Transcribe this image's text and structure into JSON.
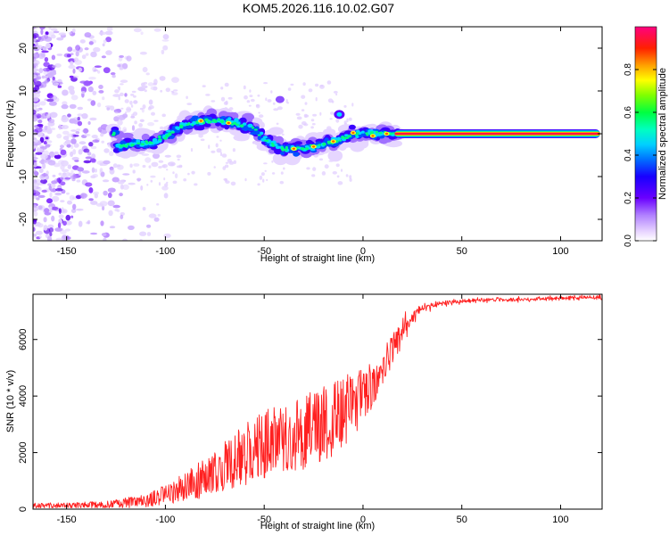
{
  "title": "KOM5.2026.116.10.02.G07",
  "chart_data": [
    {
      "type": "heatmap",
      "name": "spectrogram",
      "xlabel": "Height of straight line (km)",
      "ylabel": "Frequency (Hz)",
      "xlim": [
        -167,
        121
      ],
      "ylim": [
        -25,
        25
      ],
      "xticks": [
        -150,
        -100,
        -50,
        0,
        50,
        100
      ],
      "yticks": [
        -20,
        -10,
        0,
        10,
        20
      ],
      "colorbar": {
        "label": "Normalized spectral amplitude",
        "range": [
          0,
          1
        ],
        "ticks": [
          0.0,
          0.2,
          0.4,
          0.6,
          0.8
        ],
        "colors": [
          "#ffffff",
          "#c7a6ff",
          "#8f3dff",
          "#5a00ff",
          "#0000ff",
          "#00a0ff",
          "#00ffff",
          "#00ff80",
          "#00ff00",
          "#ffff00",
          "#ff8000",
          "#ff0000",
          "#ff0080"
        ]
      },
      "ridge": [
        [
          -125,
          -3
        ],
        [
          -115,
          -2.5
        ],
        [
          -105,
          -2
        ],
        [
          -98,
          0
        ],
        [
          -90,
          2
        ],
        [
          -80,
          3
        ],
        [
          -70,
          3
        ],
        [
          -62,
          2
        ],
        [
          -55,
          1
        ],
        [
          -48,
          -2
        ],
        [
          -40,
          -3.5
        ],
        [
          -30,
          -3.5
        ],
        [
          -20,
          -2.5
        ],
        [
          -12,
          -1.5
        ],
        [
          -5,
          0
        ],
        [
          0,
          0
        ],
        [
          8,
          0
        ],
        [
          15,
          0
        ],
        [
          20,
          0
        ],
        [
          120,
          0
        ]
      ],
      "steady_band": {
        "x_start": 16,
        "x_end": 120,
        "frequency": 0
      }
    },
    {
      "type": "line",
      "name": "snr",
      "xlabel": "Height of straight line (km)",
      "ylabel": "SNR (10 * v/v)",
      "xlim": [
        -167,
        121
      ],
      "ylim": [
        0,
        7600
      ],
      "xticks": [
        -150,
        -100,
        -50,
        0,
        50,
        100
      ],
      "yticks": [
        0,
        2000,
        4000,
        6000
      ],
      "series": [
        {
          "name": "SNR",
          "color": "#ff2020"
        }
      ],
      "envelope_x": [
        -167,
        -150,
        -130,
        -120,
        -110,
        -100,
        -90,
        -80,
        -70,
        -60,
        -50,
        -40,
        -30,
        -20,
        -10,
        0,
        10,
        15,
        20,
        25,
        30,
        40,
        50,
        60,
        80,
        100,
        120
      ],
      "envelope_mean": [
        120,
        130,
        170,
        220,
        320,
        500,
        800,
        1100,
        1500,
        1900,
        2300,
        2500,
        2700,
        3000,
        3400,
        4000,
        5000,
        5600,
        6300,
        6800,
        7100,
        7300,
        7350,
        7400,
        7420,
        7450,
        7480
      ],
      "envelope_spread": [
        100,
        100,
        140,
        180,
        250,
        350,
        500,
        700,
        900,
        1100,
        1200,
        1200,
        1300,
        1400,
        1300,
        1000,
        700,
        600,
        500,
        300,
        150,
        100,
        90,
        90,
        90,
        90,
        90
      ]
    }
  ]
}
